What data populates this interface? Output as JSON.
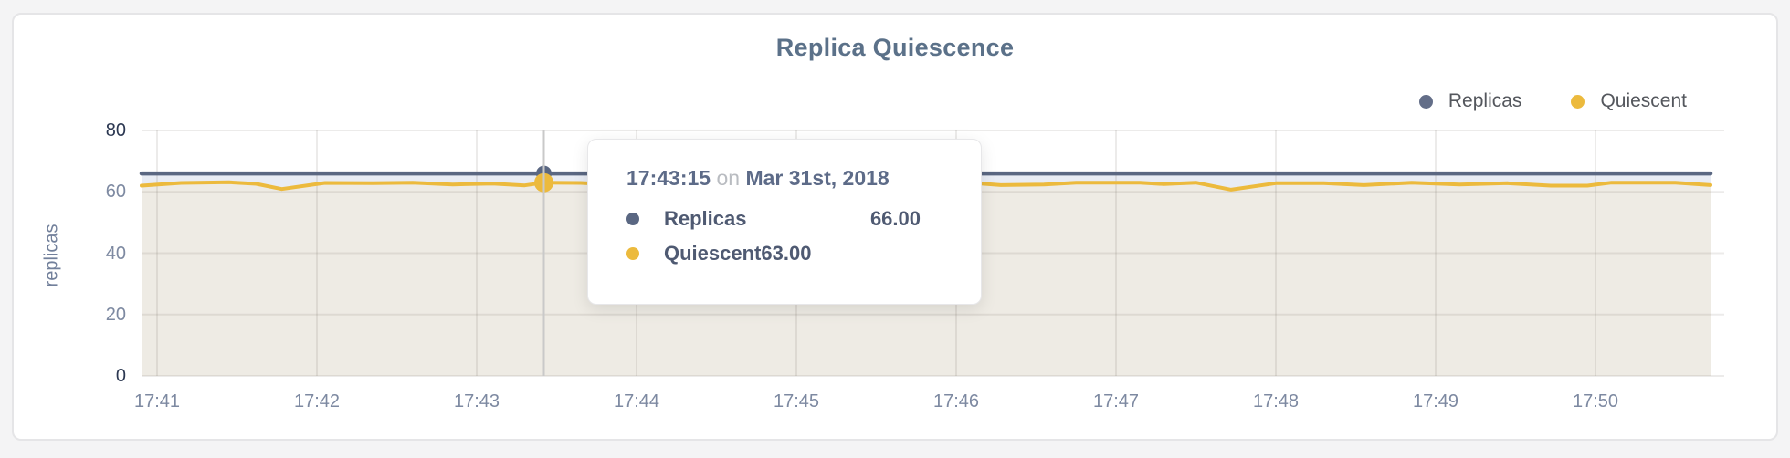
{
  "page": {
    "background": "#f4f4f5",
    "card_background": "#ffffff"
  },
  "header": {
    "title": "Replica Quiescence",
    "title_color": "#5b7189"
  },
  "legend": {
    "items": [
      {
        "label": "Replicas",
        "color": "#636e88"
      },
      {
        "label": "Quiescent",
        "color": "#ecba3d"
      }
    ]
  },
  "tooltip": {
    "time": "17:43:15",
    "preposition": "on",
    "date": "Mar 31st, 2018",
    "rows": [
      {
        "label": "Replicas",
        "value": "66.00",
        "color": "#5a6782"
      },
      {
        "label": "Quiescent",
        "value": "63.00",
        "color": "#ecba3d"
      }
    ]
  },
  "chart_data": {
    "type": "line",
    "title": "Replica Quiescence",
    "xlabel": "",
    "ylabel": "replicas",
    "ylim": [
      0,
      80
    ],
    "y_ticks": [
      80,
      60,
      40,
      20,
      0
    ],
    "x_tick_labels": [
      "17:41",
      "17:42",
      "17:43",
      "17:44",
      "17:45",
      "17:46",
      "17:47",
      "17:48",
      "17:49",
      "17:50"
    ],
    "x_tick_minutes": [
      0,
      1,
      2,
      3,
      4,
      5,
      6,
      7,
      8,
      9
    ],
    "x_range_minutes": [
      -0.097,
      9.72
    ],
    "grid": true,
    "legend_position": "top-right",
    "crosshair_color": "#c9c9c9",
    "grid_color": "rgba(106,101,92,0.13)",
    "series": [
      {
        "name": "Replicas",
        "color": "#5a6782",
        "fill": "#e8ecf4",
        "points": [
          [
            -0.097,
            66
          ],
          [
            9.72,
            66
          ]
        ]
      },
      {
        "name": "Quiescent",
        "color": "#ecba3d",
        "fill": "#eeebe4",
        "points": [
          [
            -0.097,
            62.0
          ],
          [
            0.15,
            62.9
          ],
          [
            0.45,
            63.1
          ],
          [
            0.62,
            62.6
          ],
          [
            0.78,
            60.9
          ],
          [
            1.05,
            62.9
          ],
          [
            1.35,
            62.8
          ],
          [
            1.6,
            63.0
          ],
          [
            1.85,
            62.4
          ],
          [
            2.1,
            62.7
          ],
          [
            2.3,
            62.1
          ],
          [
            2.42,
            63.0
          ],
          [
            2.65,
            62.9
          ],
          [
            2.85,
            62.4
          ],
          [
            3.1,
            62.2
          ],
          [
            3.35,
            62.7
          ],
          [
            3.6,
            61.9
          ],
          [
            3.85,
            61.6
          ],
          [
            4.1,
            62.6
          ],
          [
            4.35,
            62.8
          ],
          [
            4.6,
            62.2
          ],
          [
            4.85,
            62.7
          ],
          [
            5.1,
            62.9
          ],
          [
            5.28,
            62.2
          ],
          [
            5.55,
            62.4
          ],
          [
            5.75,
            63.0
          ],
          [
            6.15,
            63.0
          ],
          [
            6.3,
            62.5
          ],
          [
            6.5,
            63.0
          ],
          [
            6.72,
            60.7
          ],
          [
            7.0,
            62.8
          ],
          [
            7.3,
            62.8
          ],
          [
            7.55,
            62.2
          ],
          [
            7.85,
            63.0
          ],
          [
            8.15,
            62.4
          ],
          [
            8.45,
            62.8
          ],
          [
            8.72,
            62.0
          ],
          [
            8.95,
            62.0
          ],
          [
            9.1,
            63.0
          ],
          [
            9.5,
            63.0
          ],
          [
            9.72,
            62.2
          ]
        ]
      }
    ],
    "hover": {
      "minute": 2.42,
      "time": "17:43:15",
      "date": "Mar 31st, 2018",
      "values": [
        66,
        63
      ]
    }
  }
}
